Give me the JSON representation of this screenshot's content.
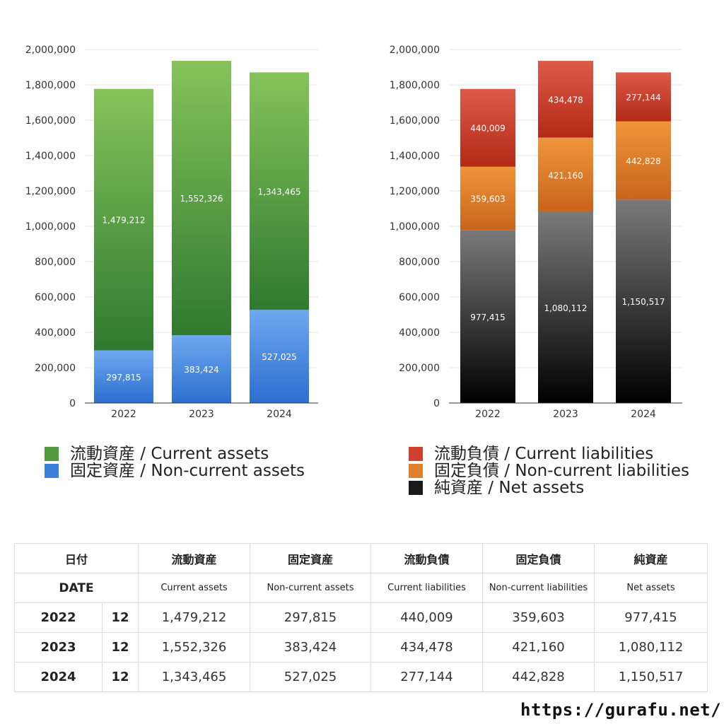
{
  "chart_data": [
    {
      "type": "bar",
      "stacked": true,
      "categories": [
        "2022",
        "2023",
        "2024"
      ],
      "ylim": [
        0,
        2000000
      ],
      "yticks": [
        0,
        200000,
        400000,
        600000,
        800000,
        1000000,
        1200000,
        1400000,
        1600000,
        1800000,
        2000000
      ],
      "ytick_labels": [
        "0",
        "200,000",
        "400,000",
        "600,000",
        "800,000",
        "1,000,000",
        "1,200,000",
        "1,400,000",
        "1,600,000",
        "1,800,000",
        "2,000,000"
      ],
      "grid": true,
      "legend_position": "bottom",
      "series": [
        {
          "name": "固定資産 / Non-current assets",
          "values": [
            297815,
            383424,
            527025
          ],
          "labels": [
            "297,815",
            "383,424",
            "527,025"
          ],
          "color_top": "#6fa8f0",
          "color_bottom": "#2c6fcf"
        },
        {
          "name": "流動資産 / Current assets",
          "values": [
            1479212,
            1552326,
            1343465
          ],
          "labels": [
            "1,479,212",
            "1,552,326",
            "1,343,465"
          ],
          "color_top": "#86c35a",
          "color_bottom": "#2f7a30"
        }
      ]
    },
    {
      "type": "bar",
      "stacked": true,
      "categories": [
        "2022",
        "2023",
        "2024"
      ],
      "ylim": [
        0,
        2000000
      ],
      "yticks": [
        0,
        200000,
        400000,
        600000,
        800000,
        1000000,
        1200000,
        1400000,
        1600000,
        1800000,
        2000000
      ],
      "ytick_labels": [
        "0",
        "200,000",
        "400,000",
        "600,000",
        "800,000",
        "1,000,000",
        "1,200,000",
        "1,400,000",
        "1,600,000",
        "1,800,000",
        "2,000,000"
      ],
      "grid": true,
      "legend_position": "bottom",
      "series": [
        {
          "name": "純資産 / Net assets",
          "values": [
            977415,
            1080112,
            1150517
          ],
          "labels": [
            "977,415",
            "1,080,112",
            "1,150,517"
          ],
          "color_top": "#7a7a7a",
          "color_bottom": "#000000"
        },
        {
          "name": "固定負債 / Non-current liabilities",
          "values": [
            359603,
            421160,
            442828
          ],
          "labels": [
            "359,603",
            "421,160",
            "442,828"
          ],
          "color_top": "#f0953a",
          "color_bottom": "#c8641c"
        },
        {
          "name": "流動負債 / Current liabilities",
          "values": [
            440009,
            434478,
            277144
          ],
          "labels": [
            "440,009",
            "434,478",
            "277,144"
          ],
          "color_top": "#dd5a4a",
          "color_bottom": "#b32a15"
        }
      ]
    }
  ],
  "legends": {
    "left": [
      {
        "label": "流動資産 / Current assets",
        "color": "#4e9a3c"
      },
      {
        "label": "固定資産 / Non-current assets",
        "color": "#3a7fd9"
      }
    ],
    "right": [
      {
        "label": "流動負債 / Current liabilities",
        "color": "#cf4030"
      },
      {
        "label": "固定負債 / Non-current liabilities",
        "color": "#e0802c"
      },
      {
        "label": "純資産 / Net assets",
        "color": "#1a1a1a"
      }
    ]
  },
  "table": {
    "header_ja": {
      "date": "日付",
      "c1": "流動資産",
      "c2": "固定資産",
      "c3": "流動負債",
      "c4": "固定負債",
      "c5": "純資産"
    },
    "header_en": {
      "date": "DATE",
      "c1": "Current assets",
      "c2": "Non-current assets",
      "c3": "Current liabilities",
      "c4": "Non-current liabilities",
      "c5": "Net assets"
    },
    "rows": [
      {
        "year": "2022",
        "month": "12",
        "v": [
          "1,479,212",
          "297,815",
          "440,009",
          "359,603",
          "977,415"
        ]
      },
      {
        "year": "2023",
        "month": "12",
        "v": [
          "1,552,326",
          "383,424",
          "434,478",
          "421,160",
          "1,080,112"
        ]
      },
      {
        "year": "2024",
        "month": "12",
        "v": [
          "1,343,465",
          "527,025",
          "277,144",
          "442,828",
          "1,150,517"
        ]
      }
    ]
  },
  "footer": {
    "url": "https://gurafu.net/"
  }
}
